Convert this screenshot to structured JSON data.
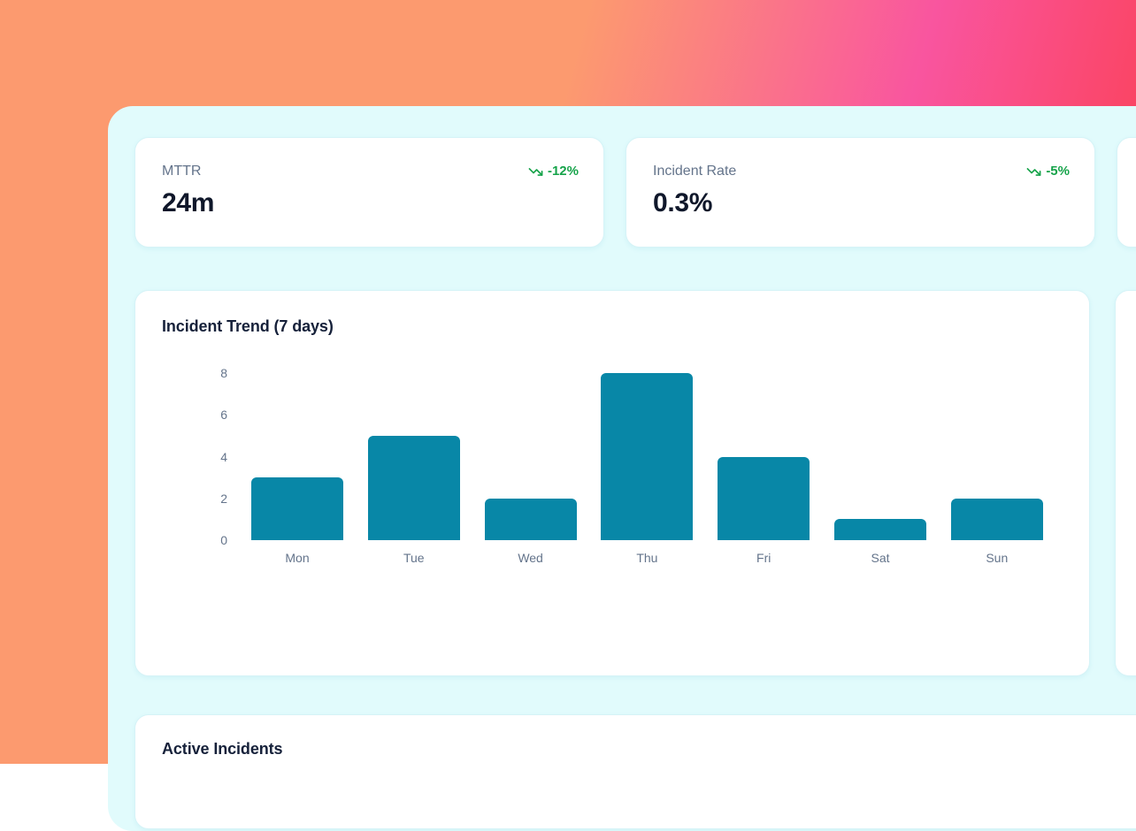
{
  "colors": {
    "gradient_left": "#FC9A6F",
    "gradient_mid": "#F9559F",
    "gradient_right": "#FB4053",
    "panel_bg": "#E1FBFC",
    "card_bg": "#FFFFFF",
    "delta_green": "#16A34A",
    "bar_teal": "#0887A7",
    "text_dark": "#0F172A",
    "text_muted": "#64748B"
  },
  "kpis": [
    {
      "label": "MTTR",
      "value": "24m",
      "delta": "-12%",
      "trend": "down"
    },
    {
      "label": "Incident Rate",
      "value": "0.3%",
      "delta": "-5%",
      "trend": "down"
    }
  ],
  "chart_card": {
    "title": "Incident Trend (7 days)"
  },
  "chart_data": {
    "type": "bar",
    "title": "Incident Trend (7 days)",
    "categories": [
      "Mon",
      "Tue",
      "Wed",
      "Thu",
      "Fri",
      "Sat",
      "Sun"
    ],
    "values": [
      3,
      5,
      2,
      8,
      4,
      1,
      2
    ],
    "xlabel": "",
    "ylabel": "",
    "ylim": [
      0,
      8
    ],
    "yticks": [
      0,
      2,
      4,
      6,
      8
    ],
    "grid": false,
    "legend": false,
    "bar_color": "#0887A7"
  },
  "active_incidents_card": {
    "title": "Active Incidents"
  }
}
